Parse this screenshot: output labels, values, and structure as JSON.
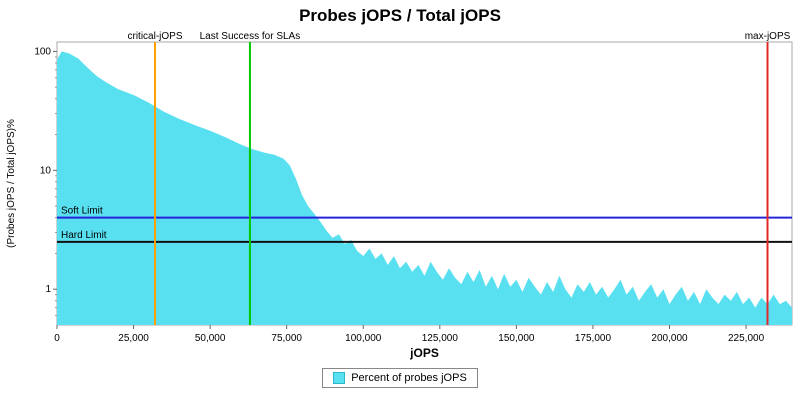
{
  "title": "Probes jOPS / Total jOPS",
  "chart_data": {
    "type": "area",
    "title": "Probes jOPS / Total jOPS",
    "xlabel": "jOPS",
    "ylabel": "(Probes jOPS / Total jOPS)%",
    "x_ticks": [
      0,
      25000,
      50000,
      75000,
      100000,
      125000,
      150000,
      175000,
      200000,
      225000
    ],
    "xlim": [
      0,
      240000
    ],
    "y_scale": "log",
    "ylim": [
      0.5,
      120
    ],
    "y_major_ticks": [
      1,
      10,
      100
    ],
    "grid": false,
    "legend_position": "bottom",
    "legend": [
      {
        "label": "Percent of probes jOPS",
        "color": "#59e0f0"
      }
    ],
    "series": [
      {
        "name": "Percent of probes jOPS",
        "color": "#59e0f0",
        "points": [
          [
            0,
            85
          ],
          [
            1500,
            100
          ],
          [
            4000,
            96
          ],
          [
            7000,
            87
          ],
          [
            10000,
            73
          ],
          [
            13000,
            62
          ],
          [
            16000,
            55
          ],
          [
            20000,
            48
          ],
          [
            25000,
            43
          ],
          [
            30000,
            37
          ],
          [
            35000,
            31
          ],
          [
            40000,
            27
          ],
          [
            45000,
            24
          ],
          [
            50000,
            21.5
          ],
          [
            55000,
            19
          ],
          [
            60000,
            16.5
          ],
          [
            64000,
            15
          ],
          [
            68000,
            14
          ],
          [
            71000,
            13.5
          ],
          [
            74000,
            12.5
          ],
          [
            76000,
            11
          ],
          [
            78000,
            8.5
          ],
          [
            80000,
            6.2
          ],
          [
            82000,
            5.0
          ],
          [
            84000,
            4.3
          ],
          [
            86000,
            3.7
          ],
          [
            88000,
            3.1
          ],
          [
            90000,
            2.7
          ],
          [
            92000,
            2.9
          ],
          [
            94000,
            2.4
          ],
          [
            96000,
            2.6
          ],
          [
            98000,
            2.1
          ],
          [
            100000,
            1.9
          ],
          [
            102000,
            2.2
          ],
          [
            104000,
            1.8
          ],
          [
            106000,
            2.0
          ],
          [
            108000,
            1.6
          ],
          [
            110000,
            1.9
          ],
          [
            112000,
            1.5
          ],
          [
            114000,
            1.7
          ],
          [
            116000,
            1.4
          ],
          [
            118000,
            1.6
          ],
          [
            120000,
            1.3
          ],
          [
            122000,
            1.7
          ],
          [
            124000,
            1.4
          ],
          [
            126000,
            1.2
          ],
          [
            128000,
            1.5
          ],
          [
            130000,
            1.25
          ],
          [
            132000,
            1.1
          ],
          [
            134000,
            1.4
          ],
          [
            136000,
            1.15
          ],
          [
            138000,
            1.45
          ],
          [
            140000,
            1.05
          ],
          [
            142000,
            1.3
          ],
          [
            144000,
            1.0
          ],
          [
            146000,
            1.35
          ],
          [
            148000,
            1.05
          ],
          [
            150000,
            1.2
          ],
          [
            152000,
            0.95
          ],
          [
            154000,
            1.25
          ],
          [
            156000,
            1.05
          ],
          [
            158000,
            0.9
          ],
          [
            160000,
            1.15
          ],
          [
            162000,
            0.95
          ],
          [
            164000,
            1.3
          ],
          [
            166000,
            1.0
          ],
          [
            168000,
            0.85
          ],
          [
            170000,
            1.1
          ],
          [
            172000,
            0.95
          ],
          [
            174000,
            1.15
          ],
          [
            176000,
            0.9
          ],
          [
            178000,
            1.05
          ],
          [
            180000,
            0.85
          ],
          [
            182000,
            1.0
          ],
          [
            184000,
            1.2
          ],
          [
            186000,
            0.9
          ],
          [
            188000,
            1.05
          ],
          [
            190000,
            0.8
          ],
          [
            192000,
            0.95
          ],
          [
            194000,
            1.1
          ],
          [
            196000,
            0.85
          ],
          [
            198000,
            1.0
          ],
          [
            200000,
            0.75
          ],
          [
            202000,
            0.9
          ],
          [
            204000,
            1.05
          ],
          [
            206000,
            0.8
          ],
          [
            208000,
            0.95
          ],
          [
            210000,
            0.75
          ],
          [
            212000,
            1.0
          ],
          [
            214000,
            0.85
          ],
          [
            216000,
            0.75
          ],
          [
            218000,
            0.9
          ],
          [
            220000,
            0.8
          ],
          [
            222000,
            0.95
          ],
          [
            224000,
            0.75
          ],
          [
            226000,
            0.85
          ],
          [
            228000,
            0.7
          ],
          [
            230000,
            0.85
          ],
          [
            232000,
            0.75
          ],
          [
            234000,
            0.9
          ],
          [
            236000,
            0.75
          ],
          [
            238000,
            0.8
          ],
          [
            240000,
            0.7
          ]
        ]
      }
    ],
    "vlines": [
      {
        "label": "critical-jOPS",
        "x": 32000,
        "color": "#ff9f00"
      },
      {
        "label": "Last Success for SLAs",
        "x": 63000,
        "color": "#00c800"
      },
      {
        "label": "max-jOPS",
        "x": 232000,
        "color": "#e02828"
      }
    ],
    "hlines": [
      {
        "label": "Soft Limit",
        "y": 4,
        "color": "#2424d8"
      },
      {
        "label": "Hard Limit",
        "y": 2.5,
        "color": "#111111"
      }
    ]
  }
}
